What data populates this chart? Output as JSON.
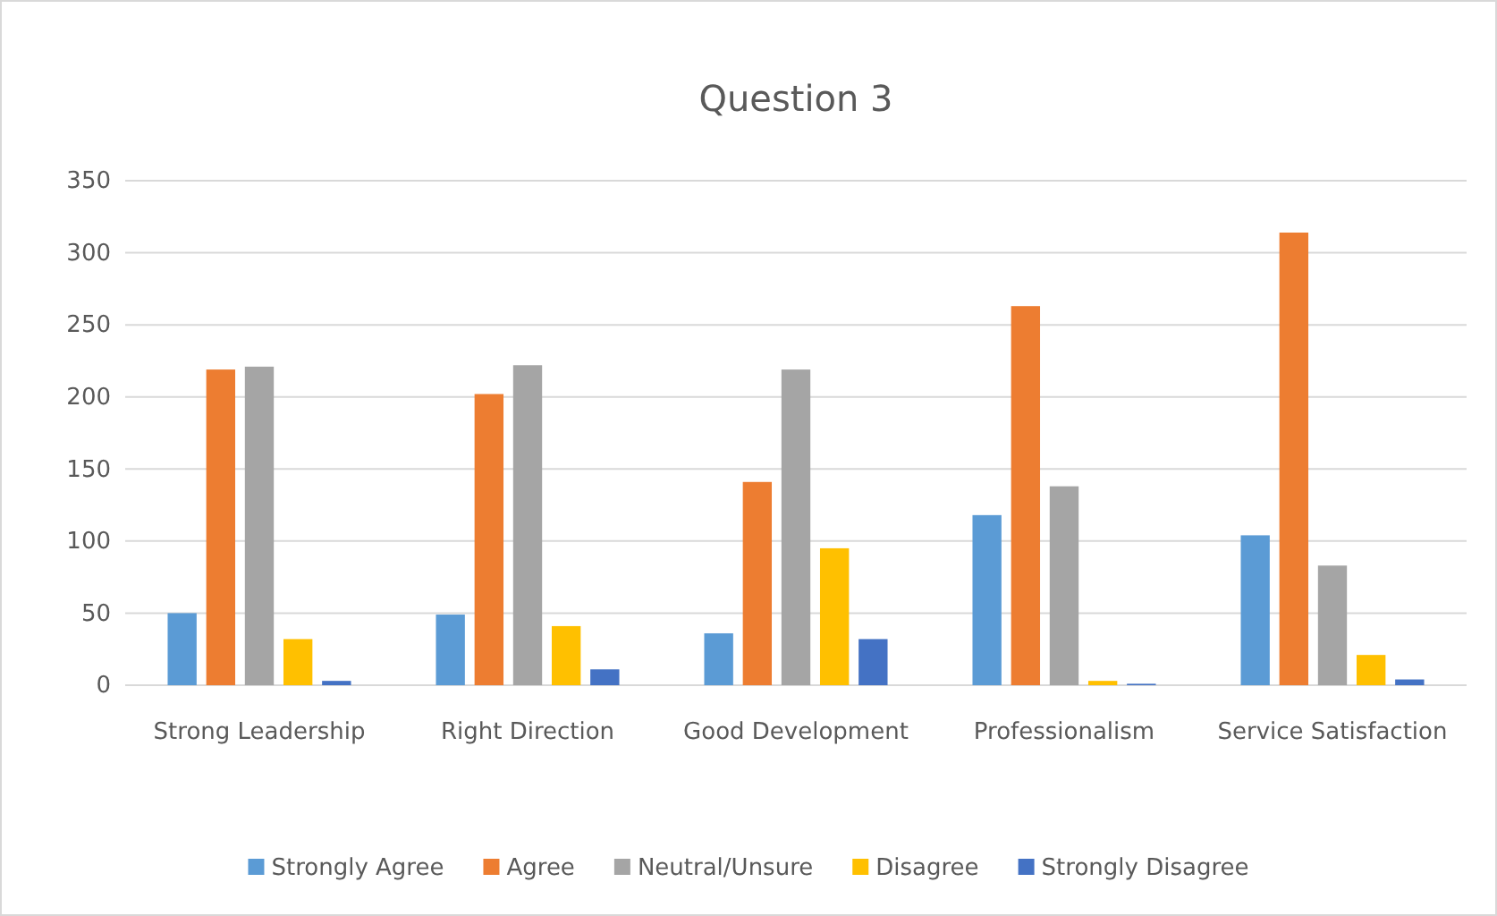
{
  "chart_data": {
    "type": "bar",
    "title": "Question 3",
    "categories": [
      "Strong Leadership",
      "Right Direction",
      "Good Development",
      "Professionalism",
      "Service Satisfaction"
    ],
    "series": [
      {
        "name": "Strongly Agree",
        "color": "#5b9bd5",
        "values": [
          50,
          49,
          36,
          118,
          104
        ]
      },
      {
        "name": "Agree",
        "color": "#ed7d31",
        "values": [
          219,
          202,
          141,
          263,
          314
        ]
      },
      {
        "name": "Neutral/Unsure",
        "color": "#a5a5a5",
        "values": [
          221,
          222,
          219,
          138,
          83
        ]
      },
      {
        "name": "Disagree",
        "color": "#ffc000",
        "values": [
          32,
          41,
          95,
          3,
          21
        ]
      },
      {
        "name": "Strongly Disagree",
        "color": "#4472c4",
        "values": [
          3,
          11,
          32,
          1,
          4
        ]
      }
    ],
    "ylim": [
      0,
      350
    ],
    "yticks": [
      0,
      50,
      100,
      150,
      200,
      250,
      300,
      350
    ],
    "grid": "y",
    "legend": "bottom"
  }
}
